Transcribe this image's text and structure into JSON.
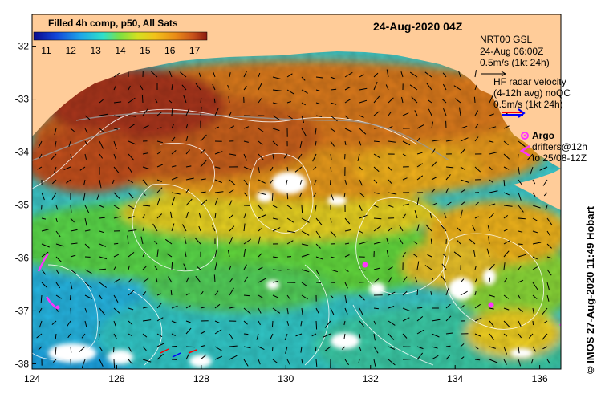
{
  "map": {
    "title": "24-Aug-2020 04Z",
    "colorbar": {
      "title": "Filled 4h comp, p50, All Sats",
      "min": 10.5,
      "max": 17.5,
      "ticks": [
        "11",
        "12",
        "13",
        "14",
        "15",
        "16",
        "17"
      ]
    },
    "axes": {
      "lon_min": 124,
      "lon_max": 136.5,
      "lat_min": -38.1,
      "lat_max": -31.4,
      "lon_ticks": [
        "124",
        "126",
        "128",
        "130",
        "132",
        "134",
        "136"
      ],
      "lat_ticks": [
        "-32",
        "-33",
        "-34",
        "-35",
        "-36",
        "-37",
        "-38"
      ]
    },
    "legend": {
      "nrt": {
        "line1": "NRT00 GSL",
        "line2": "24-Aug 06:00Z",
        "line3": "0.5m/s (1kt 24h)"
      },
      "hf": {
        "line1": "HF radar velocity",
        "line2": "(4-12h avg) noQC",
        "line3": "0.5m/s (1kt 24h)"
      },
      "argo": {
        "label": "Argo",
        "color": "#ff33ff"
      },
      "drifters": {
        "line1": "drifters@12h",
        "line2": "to 25/08-12Z",
        "color": "#ff33ff"
      }
    },
    "credit": "© IMOS 27-Aug-2020 11:49 Hobart",
    "colors": {
      "land": "#ffcc99",
      "warm": "#c8531c",
      "cool": "#2fb8d8",
      "arrow_blue": "#0000ff",
      "arrow_red": "#ff0000"
    }
  }
}
